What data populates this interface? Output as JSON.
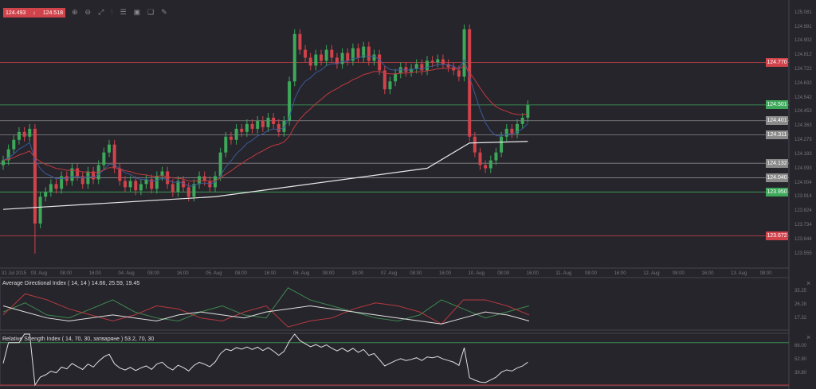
{
  "quote": {
    "bid": "124.493",
    "ask": "124.518",
    "direction_icon": "arrow-down-icon"
  },
  "toolbar": [
    "zoom-in-icon",
    "zoom-out-icon",
    "scale-icon",
    "candles-icon",
    "indicators-icon",
    "screenshot-icon",
    "templates-icon",
    "draw-icon"
  ],
  "toolbar_glyphs": [
    "⊕",
    "⊖",
    "⤢",
    "⫶",
    "☰",
    "▣",
    "❏",
    "✎"
  ],
  "colors": {
    "bg": "#26252c",
    "up": "#3da85a",
    "down": "#d1434b",
    "ma_fast": "#3a5a9a",
    "ma_slow": "#c0393f",
    "ma_long": "#e8e8e8"
  },
  "price_axis": [
    "125.081",
    "124.991",
    "124.902",
    "124.812",
    "124.722",
    "124.632",
    "124.542",
    "124.453",
    "124.363",
    "124.273",
    "124.183",
    "124.093",
    "124.004",
    "123.914",
    "123.824",
    "123.734",
    "123.644",
    "123.555"
  ],
  "levels": [
    {
      "value": 124.77,
      "label": "124.770",
      "color": "#d1434b"
    },
    {
      "value": 124.501,
      "label": "124.501",
      "color": "#3da85a"
    },
    {
      "value": 124.401,
      "label": "124.401",
      "color": "#8a8a8a"
    },
    {
      "value": 124.311,
      "label": "124.311",
      "color": "#8a8a8a"
    },
    {
      "value": 124.132,
      "label": "124.132",
      "color": "#8a8a8a"
    },
    {
      "value": 124.04,
      "label": "124.040",
      "color": "#8a8a8a"
    },
    {
      "value": 123.95,
      "label": "123.950",
      "color": "#3da85a"
    },
    {
      "value": 123.672,
      "label": "123.672",
      "color": "#d1434b"
    }
  ],
  "time_axis": [
    "31 Jul 2015",
    "03. Aug",
    "08:00",
    "16:00",
    "04. Aug",
    "08:00",
    "16:00",
    "05. Aug",
    "08:00",
    "16:00",
    "06. Aug",
    "08:00",
    "16:00",
    "07. Aug",
    "08:00",
    "16:00",
    "10. Aug",
    "08:00",
    "16:00",
    "11. Aug",
    "08:00",
    "16:00",
    "12. Aug",
    "08:00",
    "16:00",
    "13. Aug",
    "08:00"
  ],
  "adx": {
    "title": "Average Directional Index ( 14, 14 ) 14.66, 25.59, 19.45",
    "axis": [
      "35.25",
      "26.28",
      "17.32"
    ]
  },
  "rsi": {
    "title": "Relative Strength Index ( 14, 70, 30, затваряне ) 53.2, 70, 30",
    "axis": [
      "66.00",
      "52.90",
      "39.80"
    ]
  },
  "chart_data": {
    "type": "candlestick",
    "ylim": [
      123.555,
      125.081
    ],
    "close": [
      124.15,
      124.22,
      124.28,
      124.33,
      124.3,
      124.35,
      123.75,
      123.92,
      123.95,
      124.0,
      123.97,
      124.05,
      124.02,
      124.1,
      124.05,
      124.0,
      124.08,
      124.03,
      124.12,
      124.2,
      124.25,
      124.1,
      124.02,
      123.98,
      124.02,
      123.96,
      124.0,
      124.03,
      123.97,
      124.05,
      124.08,
      124.0,
      123.95,
      124.02,
      123.98,
      123.92,
      124.0,
      124.05,
      124.02,
      123.98,
      124.05,
      124.2,
      124.3,
      124.28,
      124.35,
      124.33,
      124.38,
      124.35,
      124.4,
      124.36,
      124.42,
      124.38,
      124.33,
      124.4,
      124.65,
      124.95,
      124.85,
      124.8,
      124.75,
      124.82,
      124.78,
      124.85,
      124.8,
      124.76,
      124.83,
      124.78,
      124.86,
      124.8,
      124.87,
      124.78,
      124.82,
      124.72,
      124.6,
      124.65,
      124.7,
      124.74,
      124.71,
      124.73,
      124.76,
      124.72,
      124.78,
      124.77,
      124.79,
      124.76,
      124.74,
      124.72,
      124.68,
      124.98,
      124.3,
      124.2,
      124.12,
      124.1,
      124.15,
      124.2,
      124.3,
      124.35,
      124.32,
      124.38,
      124.42,
      124.5
    ],
    "ma_long": [
      [
        0,
        123.84
      ],
      [
        40,
        123.92
      ],
      [
        80,
        124.1
      ],
      [
        88,
        124.26
      ],
      [
        99,
        124.27
      ]
    ],
    "adx_plus": [
      22,
      28,
      20,
      18,
      24,
      30,
      22,
      18,
      16,
      22,
      26,
      20,
      18,
      38,
      30,
      26,
      22,
      18,
      16,
      20,
      30,
      24,
      18,
      22,
      26
    ],
    "adx_minus": [
      20,
      34,
      30,
      24,
      20,
      16,
      20,
      26,
      24,
      18,
      16,
      22,
      26,
      12,
      16,
      18,
      24,
      28,
      26,
      22,
      14,
      30,
      30,
      26,
      20
    ],
    "adx_main": [
      26,
      22,
      18,
      16,
      18,
      20,
      18,
      16,
      20,
      22,
      20,
      18,
      22,
      24,
      26,
      24,
      22,
      20,
      18,
      16,
      14,
      18,
      22,
      20,
      16
    ]
  }
}
